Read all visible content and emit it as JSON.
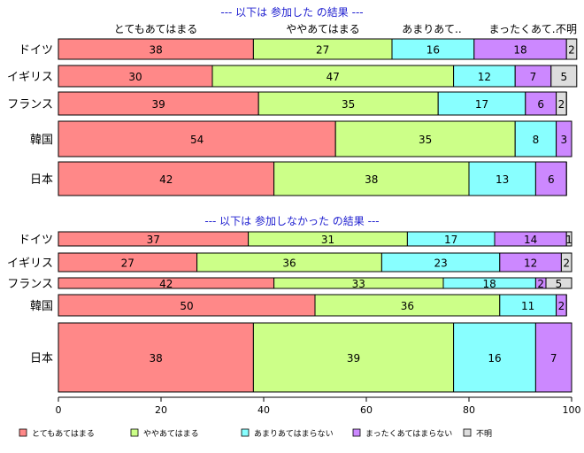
{
  "chart_data": {
    "type": "bar",
    "orientation": "horizontal",
    "stacked": true,
    "xlim": [
      0,
      100
    ],
    "x_ticks": [
      "0",
      "20",
      "40",
      "60",
      "80",
      "100"
    ],
    "grid": false,
    "legend_position": "bottom",
    "categories_header": [
      "とてもあてはまる",
      "ややあてはまる",
      "あまりあて..",
      "まったくあて..",
      "不明"
    ],
    "series": [
      {
        "name": "とてもあてはまる",
        "color": "#ff8888"
      },
      {
        "name": "ややあてはまる",
        "color": "#ccff88"
      },
      {
        "name": "あまりあてはまらない",
        "color": "#88ffff"
      },
      {
        "name": "まったくあてはまらない",
        "color": "#cc88ff"
      },
      {
        "name": "不明",
        "color": "#dddddd"
      }
    ],
    "panels": [
      {
        "title": "--- 以下は 参加した の結果 ---",
        "rows": [
          {
            "label": "ドイツ",
            "values": [
              38,
              27,
              16,
              18,
              2
            ]
          },
          {
            "label": "イギリス",
            "values": [
              30,
              47,
              12,
              7,
              5
            ]
          },
          {
            "label": "フランス",
            "values": [
              39,
              35,
              17,
              6,
              2
            ]
          },
          {
            "label": "韓国",
            "values": [
              54,
              35,
              8,
              3,
              0
            ]
          },
          {
            "label": "日本",
            "values": [
              42,
              38,
              13,
              6,
              0
            ]
          }
        ]
      },
      {
        "title": "--- 以下は 参加しなかった の結果 ---",
        "rows": [
          {
            "label": "ドイツ",
            "values": [
              37,
              31,
              17,
              14,
              1
            ]
          },
          {
            "label": "イギリス",
            "values": [
              27,
              36,
              23,
              12,
              2
            ]
          },
          {
            "label": "フランス",
            "values": [
              42,
              33,
              18,
              2,
              5
            ]
          },
          {
            "label": "韓国",
            "values": [
              50,
              36,
              11,
              2,
              0
            ]
          },
          {
            "label": "日本",
            "values": [
              38,
              39,
              16,
              7,
              0
            ]
          }
        ]
      }
    ]
  }
}
